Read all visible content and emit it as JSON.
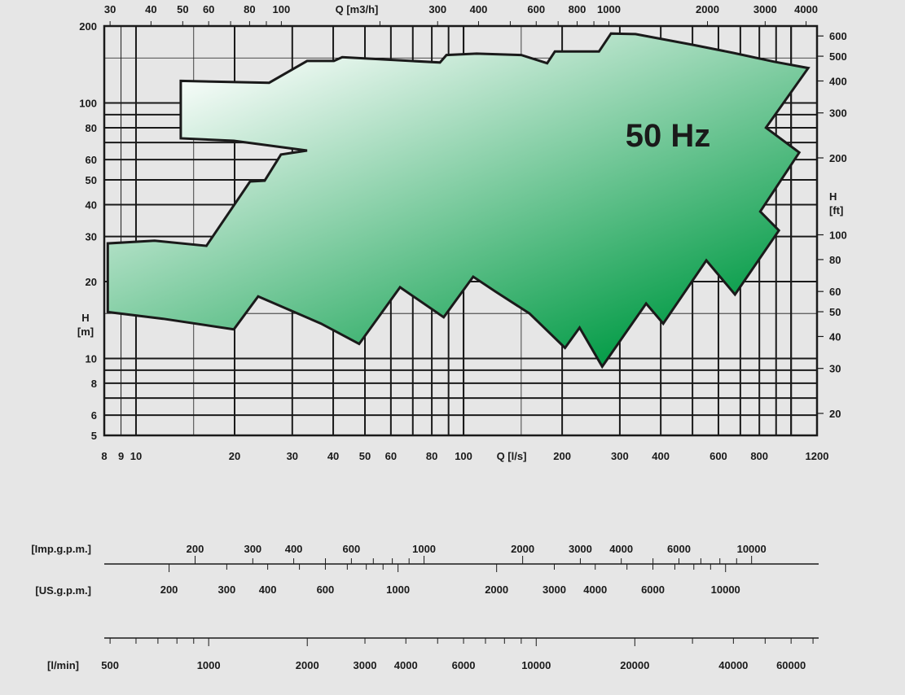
{
  "chart_data": {
    "type": "area",
    "title": "50 Hz",
    "x_scale": "log",
    "y_scale": "log",
    "grid": true,
    "colors": {
      "fill_light": "#ffffff",
      "fill_dark": "#009a44",
      "outline": "#1a1a1a",
      "grid": "#1a1a1a",
      "background": "#e6e6e6"
    },
    "axes": {
      "bottom": {
        "label": "Q [l/s]",
        "range": [
          8,
          1200
        ],
        "ticks": [
          8,
          9,
          10,
          20,
          30,
          40,
          50,
          60,
          80,
          100,
          200,
          300,
          400,
          600,
          800,
          1200
        ]
      },
      "top": {
        "label": "Q [m3/h]",
        "ticks": [
          30,
          40,
          50,
          60,
          80,
          100,
          300,
          400,
          600,
          800,
          1000,
          2000,
          3000,
          4000
        ]
      },
      "left": {
        "label_line1": "H",
        "label_line2": "[m]",
        "range": [
          5,
          200
        ],
        "ticks": [
          5,
          6,
          8,
          10,
          20,
          30,
          40,
          50,
          60,
          80,
          100,
          200
        ]
      },
      "right": {
        "label_line1": "H",
        "label_line2": "[ft]",
        "ticks": [
          20,
          30,
          40,
          50,
          60,
          80,
          100,
          200,
          300,
          400,
          500,
          600
        ]
      }
    },
    "extra_scales": {
      "imp_gpm": {
        "label": "[Imp.g.p.m.]",
        "ticks": [
          200,
          300,
          400,
          600,
          1000,
          2000,
          3000,
          4000,
          6000,
          10000
        ]
      },
      "us_gpm": {
        "label": "[US.g.p.m.]",
        "ticks": [
          200,
          300,
          400,
          600,
          1000,
          2000,
          3000,
          4000,
          6000,
          10000
        ]
      },
      "l_min": {
        "label": "[l/min]",
        "ticks": [
          500,
          1000,
          2000,
          3000,
          4000,
          6000,
          10000,
          20000,
          40000,
          60000
        ]
      }
    },
    "series": [
      {
        "polygon_q_ls_h_m": [
          [
            13.7,
            122
          ],
          [
            25.5,
            120
          ],
          [
            33.3,
            146
          ],
          [
            40.2,
            146
          ],
          [
            42.6,
            151
          ],
          [
            84.7,
            144
          ],
          [
            88.7,
            154
          ],
          [
            109.6,
            156
          ],
          [
            150,
            154
          ],
          [
            180,
            143
          ],
          [
            190,
            159
          ],
          [
            259,
            159
          ],
          [
            282,
            187
          ],
          [
            335,
            186
          ],
          [
            500,
            169
          ],
          [
            666,
            157
          ],
          [
            887,
            145
          ],
          [
            1128,
            137
          ],
          [
            838,
            80
          ],
          [
            1059,
            64
          ],
          [
            805,
            37.6
          ],
          [
            918,
            31.7
          ],
          [
            674,
            17.8
          ],
          [
            551,
            24.2
          ],
          [
            407,
            13.7
          ],
          [
            361,
            16.4
          ],
          [
            265,
            9.3
          ],
          [
            226,
            13.2
          ],
          [
            204,
            11.0
          ],
          [
            159,
            15.0
          ],
          [
            125,
            18.3
          ],
          [
            107,
            20.9
          ],
          [
            87,
            14.5
          ],
          [
            64,
            19.0
          ],
          [
            48,
            11.4
          ],
          [
            36.7,
            13.7
          ],
          [
            23.6,
            17.5
          ],
          [
            19.9,
            13.0
          ],
          [
            12.1,
            14.3
          ],
          [
            8.2,
            15.2
          ],
          [
            8.2,
            28.2
          ],
          [
            11.4,
            28.9
          ],
          [
            16.4,
            27.6
          ],
          [
            22.3,
            49.3
          ],
          [
            24.7,
            49.6
          ],
          [
            27.7,
            62.8
          ],
          [
            33.3,
            65.1
          ],
          [
            19.9,
            71.1
          ],
          [
            13.7,
            72.7
          ]
        ]
      }
    ]
  }
}
